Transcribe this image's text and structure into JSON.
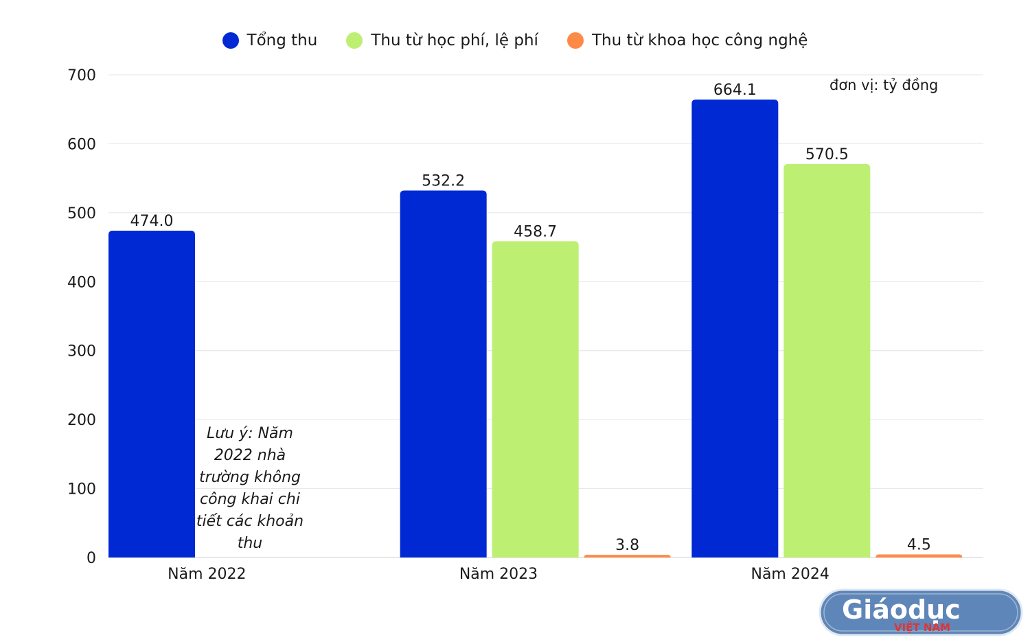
{
  "chart_data": {
    "type": "bar",
    "categories": [
      "Năm 2022",
      "Năm 2023",
      "Năm 2024"
    ],
    "series": [
      {
        "name": "Tổng thu",
        "color": "#0029d4",
        "values": [
          474.0,
          532.2,
          664.1
        ],
        "labels": [
          "474.0",
          "532.2",
          "664.1"
        ]
      },
      {
        "name": "Thu từ học phí, lệ phí",
        "color": "#bdef72",
        "values": [
          null,
          458.7,
          570.5
        ],
        "labels": [
          "",
          "458.7",
          "570.5"
        ]
      },
      {
        "name": "Thu từ khoa học công nghệ",
        "color": "#ff8a45",
        "values": [
          null,
          3.8,
          4.5
        ],
        "labels": [
          "",
          "3.8",
          "4.5"
        ]
      }
    ],
    "ylim": [
      0,
      700
    ],
    "yticks": [
      "0",
      "100",
      "200",
      "300",
      "400",
      "500",
      "600",
      "700"
    ],
    "grid": true,
    "legend_position": "top-center",
    "unit_note": "đơn vị: tỷ đồng",
    "annotation": "Lưu ý: Năm 2022 nhà trường không công khai chi tiết các khoản thu"
  },
  "watermark": {
    "text": "Giáodục",
    "subtext": "VIỆT NAM"
  }
}
